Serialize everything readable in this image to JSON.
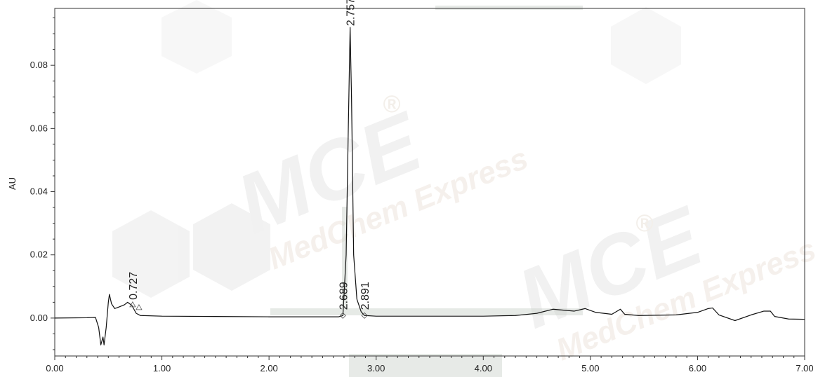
{
  "chart_data": {
    "type": "line",
    "xlabel": "",
    "ylabel": "AU",
    "xlim": [
      0.0,
      7.0
    ],
    "ylim": [
      -0.012,
      0.098
    ],
    "x_ticks": [
      "0.00",
      "1.00",
      "2.00",
      "3.00",
      "4.00",
      "5.00",
      "6.00",
      "7.00"
    ],
    "y_ticks": [
      "0.00",
      "0.02",
      "0.04",
      "0.06",
      "0.08"
    ],
    "grid": false,
    "series": [
      {
        "values": [
          [
            0.0,
            0.0
          ],
          [
            0.3,
            0.0001
          ],
          [
            0.38,
            0.0002
          ],
          [
            0.41,
            -0.003
          ],
          [
            0.43,
            -0.0085
          ],
          [
            0.45,
            -0.006
          ],
          [
            0.46,
            -0.0085
          ],
          [
            0.48,
            -0.003
          ],
          [
            0.5,
            0.005
          ],
          [
            0.51,
            0.0075
          ],
          [
            0.53,
            0.0045
          ],
          [
            0.56,
            0.003
          ],
          [
            0.6,
            0.0035
          ],
          [
            0.65,
            0.0042
          ],
          [
            0.68,
            0.005
          ],
          [
            0.72,
            0.004
          ],
          [
            0.76,
            0.0015
          ],
          [
            0.8,
            0.0008
          ],
          [
            1.0,
            0.0006
          ],
          [
            1.5,
            0.0005
          ],
          [
            2.0,
            0.0004
          ],
          [
            2.5,
            0.0004
          ],
          [
            2.65,
            0.0004
          ],
          [
            2.69,
            0.0008
          ],
          [
            2.72,
            0.02
          ],
          [
            2.74,
            0.06
          ],
          [
            2.757,
            0.092
          ],
          [
            2.77,
            0.07
          ],
          [
            2.79,
            0.02
          ],
          [
            2.82,
            0.006
          ],
          [
            2.86,
            0.002
          ],
          [
            2.891,
            0.0008
          ],
          [
            3.0,
            0.0006
          ],
          [
            3.5,
            0.0006
          ],
          [
            4.0,
            0.0006
          ],
          [
            4.3,
            0.0008
          ],
          [
            4.5,
            0.0015
          ],
          [
            4.65,
            0.0028
          ],
          [
            4.75,
            0.0025
          ],
          [
            4.85,
            0.0022
          ],
          [
            4.95,
            0.003
          ],
          [
            5.05,
            0.0018
          ],
          [
            5.2,
            0.0012
          ],
          [
            5.28,
            0.0028
          ],
          [
            5.32,
            0.0012
          ],
          [
            5.45,
            0.0008
          ],
          [
            5.8,
            0.001
          ],
          [
            6.0,
            0.0018
          ],
          [
            6.1,
            0.003
          ],
          [
            6.14,
            0.0032
          ],
          [
            6.2,
            0.001
          ],
          [
            6.35,
            -0.0008
          ],
          [
            6.5,
            0.001
          ],
          [
            6.62,
            0.0022
          ],
          [
            6.68,
            0.0022
          ],
          [
            6.72,
            0.0005
          ],
          [
            6.85,
            -0.0003
          ],
          [
            7.0,
            -0.0004
          ]
        ]
      }
    ],
    "annotations": [
      {
        "text": "0.727",
        "x": 0.727,
        "y": 0.004,
        "marker": "triangle"
      },
      {
        "text": "2.689",
        "x": 2.689,
        "y": 0.0008,
        "marker": "diamond"
      },
      {
        "text": "2.757",
        "x": 2.757,
        "y": 0.092,
        "marker": "none"
      },
      {
        "text": "2.891",
        "x": 2.891,
        "y": 0.0008,
        "marker": "diamond"
      }
    ],
    "watermark": {
      "brand": "MCE",
      "subtitle": "MedChem Express",
      "registered": "®",
      "colors": [
        "#eeeeee",
        "#f7efe8"
      ]
    },
    "colors": {
      "line": "#111111",
      "axis": "#333333"
    }
  }
}
